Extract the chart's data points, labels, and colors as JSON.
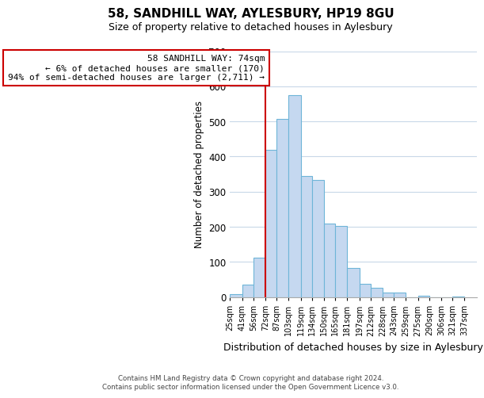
{
  "title": "58, SANDHILL WAY, AYLESBURY, HP19 8GU",
  "subtitle": "Size of property relative to detached houses in Aylesbury",
  "xlabel": "Distribution of detached houses by size in Aylesbury",
  "ylabel": "Number of detached properties",
  "bin_labels": [
    "25sqm",
    "41sqm",
    "56sqm",
    "72sqm",
    "87sqm",
    "103sqm",
    "119sqm",
    "134sqm",
    "150sqm",
    "165sqm",
    "181sqm",
    "197sqm",
    "212sqm",
    "228sqm",
    "243sqm",
    "259sqm",
    "275sqm",
    "290sqm",
    "306sqm",
    "321sqm",
    "337sqm"
  ],
  "bin_edges": [
    25,
    41,
    56,
    72,
    87,
    103,
    119,
    134,
    150,
    165,
    181,
    197,
    212,
    228,
    243,
    259,
    275,
    290,
    306,
    321,
    337
  ],
  "bar_heights": [
    8,
    35,
    113,
    420,
    508,
    575,
    345,
    333,
    210,
    202,
    83,
    37,
    27,
    13,
    13,
    0,
    3,
    0,
    0,
    2
  ],
  "bar_color": "#c5d8f0",
  "bar_edge_color": "#6eb5d8",
  "vline_x": 72,
  "vline_color": "#cc0000",
  "ylim": [
    0,
    700
  ],
  "annotation_line1": "58 SANDHILL WAY: 74sqm",
  "annotation_line2": "← 6% of detached houses are smaller (170)",
  "annotation_line3": "94% of semi-detached houses are larger (2,711) →",
  "annotation_box_edge": "#cc0000",
  "footer_line1": "Contains HM Land Registry data © Crown copyright and database right 2024.",
  "footer_line2": "Contains public sector information licensed under the Open Government Licence v3.0.",
  "bg_color": "#ffffff",
  "grid_color": "#c8d8e8"
}
